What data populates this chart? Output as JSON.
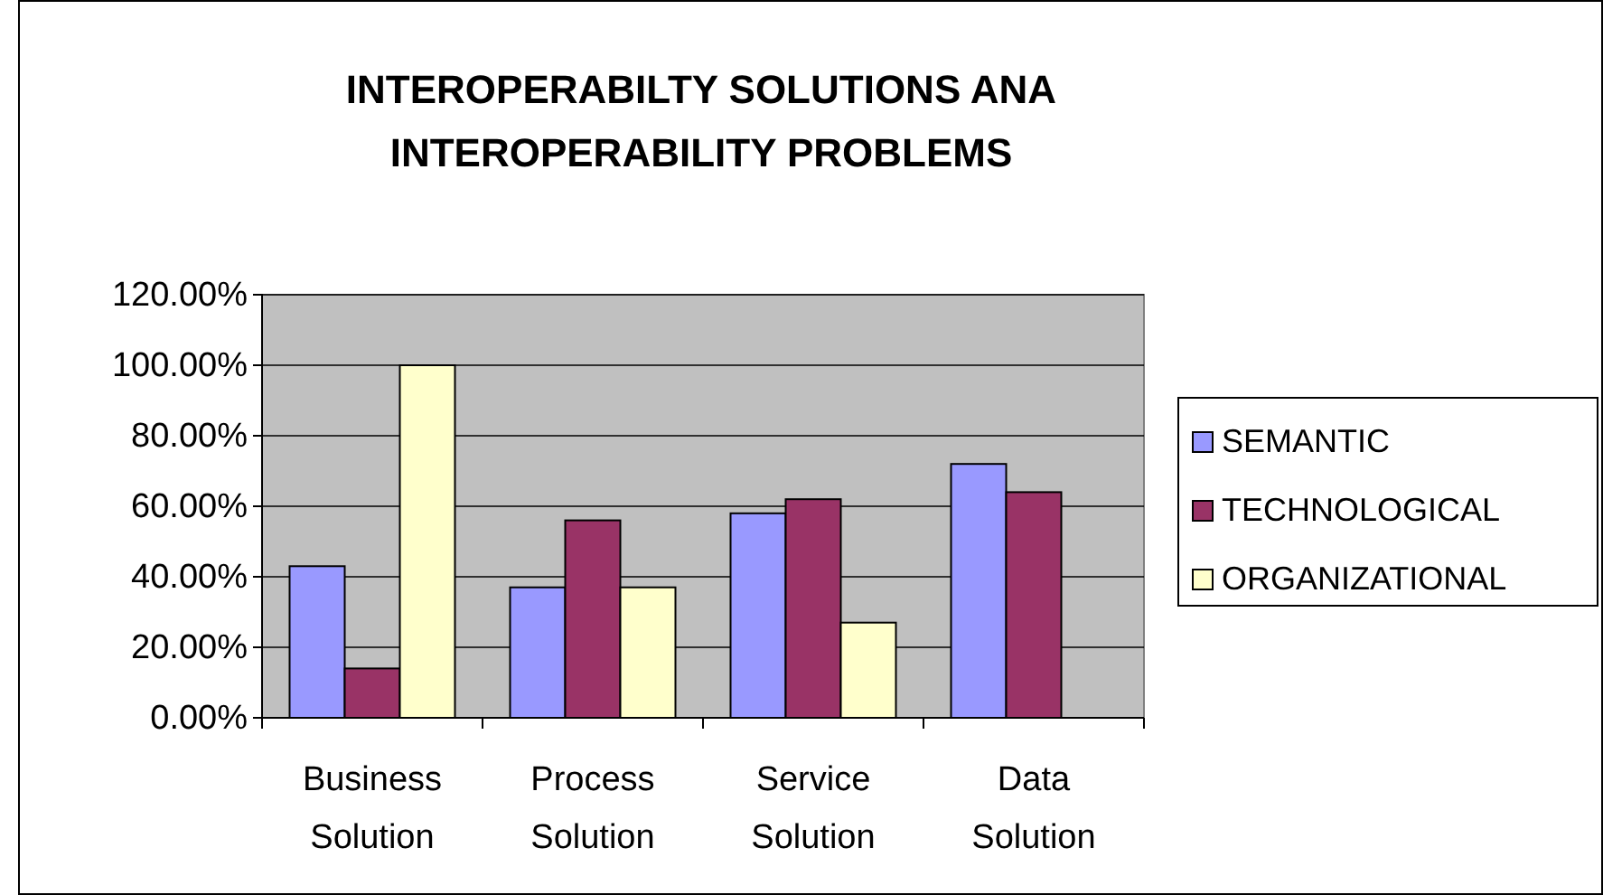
{
  "chart_data": {
    "type": "bar",
    "title": "INTEROPERABILTY SOLUTIONS ANA INTEROPERABILITY PROBLEMS",
    "categories": [
      "Business Solution",
      "Process Solution",
      "Service Solution",
      "Data Solution"
    ],
    "series": [
      {
        "name": "SEMANTIC",
        "color": "#9999ff",
        "values": [
          0.43,
          0.37,
          0.58,
          0.72
        ]
      },
      {
        "name": "TECHNOLOGICAL",
        "color": "#993366",
        "values": [
          0.14,
          0.56,
          0.62,
          0.64
        ]
      },
      {
        "name": "ORGANIZATIONAL",
        "color": "#ffffcc",
        "values": [
          1.0,
          0.37,
          0.27,
          null
        ]
      }
    ],
    "ylim": [
      0,
      1.2
    ],
    "yticks": [
      {
        "value": 0,
        "label": "0.00%"
      },
      {
        "value": 0.2,
        "label": "20.00%"
      },
      {
        "value": 0.4,
        "label": "40.00%"
      },
      {
        "value": 0.6,
        "label": "60.00%"
      },
      {
        "value": 0.8,
        "label": "80.00%"
      },
      {
        "value": 1.0,
        "label": "100.00%"
      },
      {
        "value": 1.2,
        "label": "120.00%"
      }
    ],
    "grid": "y",
    "legend": "right"
  }
}
